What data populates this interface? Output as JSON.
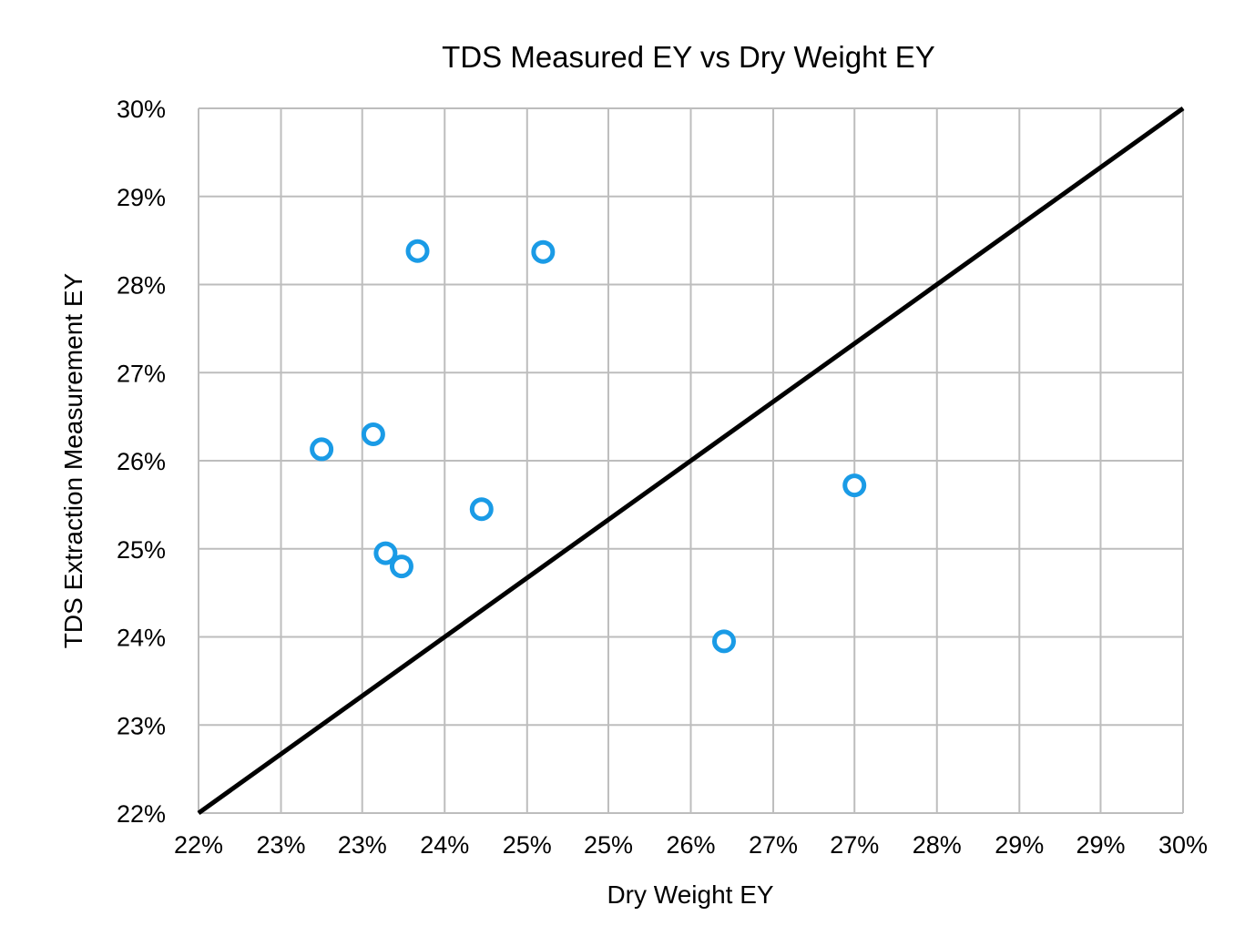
{
  "chart_data": {
    "type": "scatter",
    "title": "TDS Measured EY vs Dry Weight EY",
    "xlabel": "Dry Weight EY",
    "ylabel": "TDS Extraction Measurement EY",
    "xlim": [
      22,
      30
    ],
    "ylim": [
      22,
      30
    ],
    "grid": true,
    "legend": "none",
    "x_ticks": [
      22,
      22.67,
      23.33,
      24,
      24.67,
      25.33,
      26,
      26.67,
      27.33,
      28,
      28.67,
      29.33,
      30
    ],
    "x_tick_labels": [
      "22%",
      "23%",
      "23%",
      "24%",
      "25%",
      "25%",
      "26%",
      "27%",
      "27%",
      "28%",
      "29%",
      "29%",
      "30%"
    ],
    "y_ticks": [
      22,
      23,
      24,
      25,
      26,
      27,
      28,
      29,
      30
    ],
    "y_tick_labels": [
      "22%",
      "23%",
      "24%",
      "25%",
      "26%",
      "27%",
      "28%",
      "29%",
      "30%"
    ],
    "series": [
      {
        "type": "scatter",
        "color": "#1a9be6",
        "marker": "hollow-circle",
        "points": [
          {
            "x": 23.0,
            "y": 26.13
          },
          {
            "x": 23.42,
            "y": 26.3
          },
          {
            "x": 23.52,
            "y": 24.95
          },
          {
            "x": 23.65,
            "y": 24.8
          },
          {
            "x": 23.78,
            "y": 28.38
          },
          {
            "x": 24.3,
            "y": 25.45
          },
          {
            "x": 24.8,
            "y": 28.37
          },
          {
            "x": 26.27,
            "y": 23.95
          },
          {
            "x": 27.33,
            "y": 25.72
          }
        ]
      },
      {
        "type": "line",
        "color": "#000000",
        "points": [
          {
            "x": 22,
            "y": 22
          },
          {
            "x": 30,
            "y": 30
          }
        ]
      }
    ]
  }
}
